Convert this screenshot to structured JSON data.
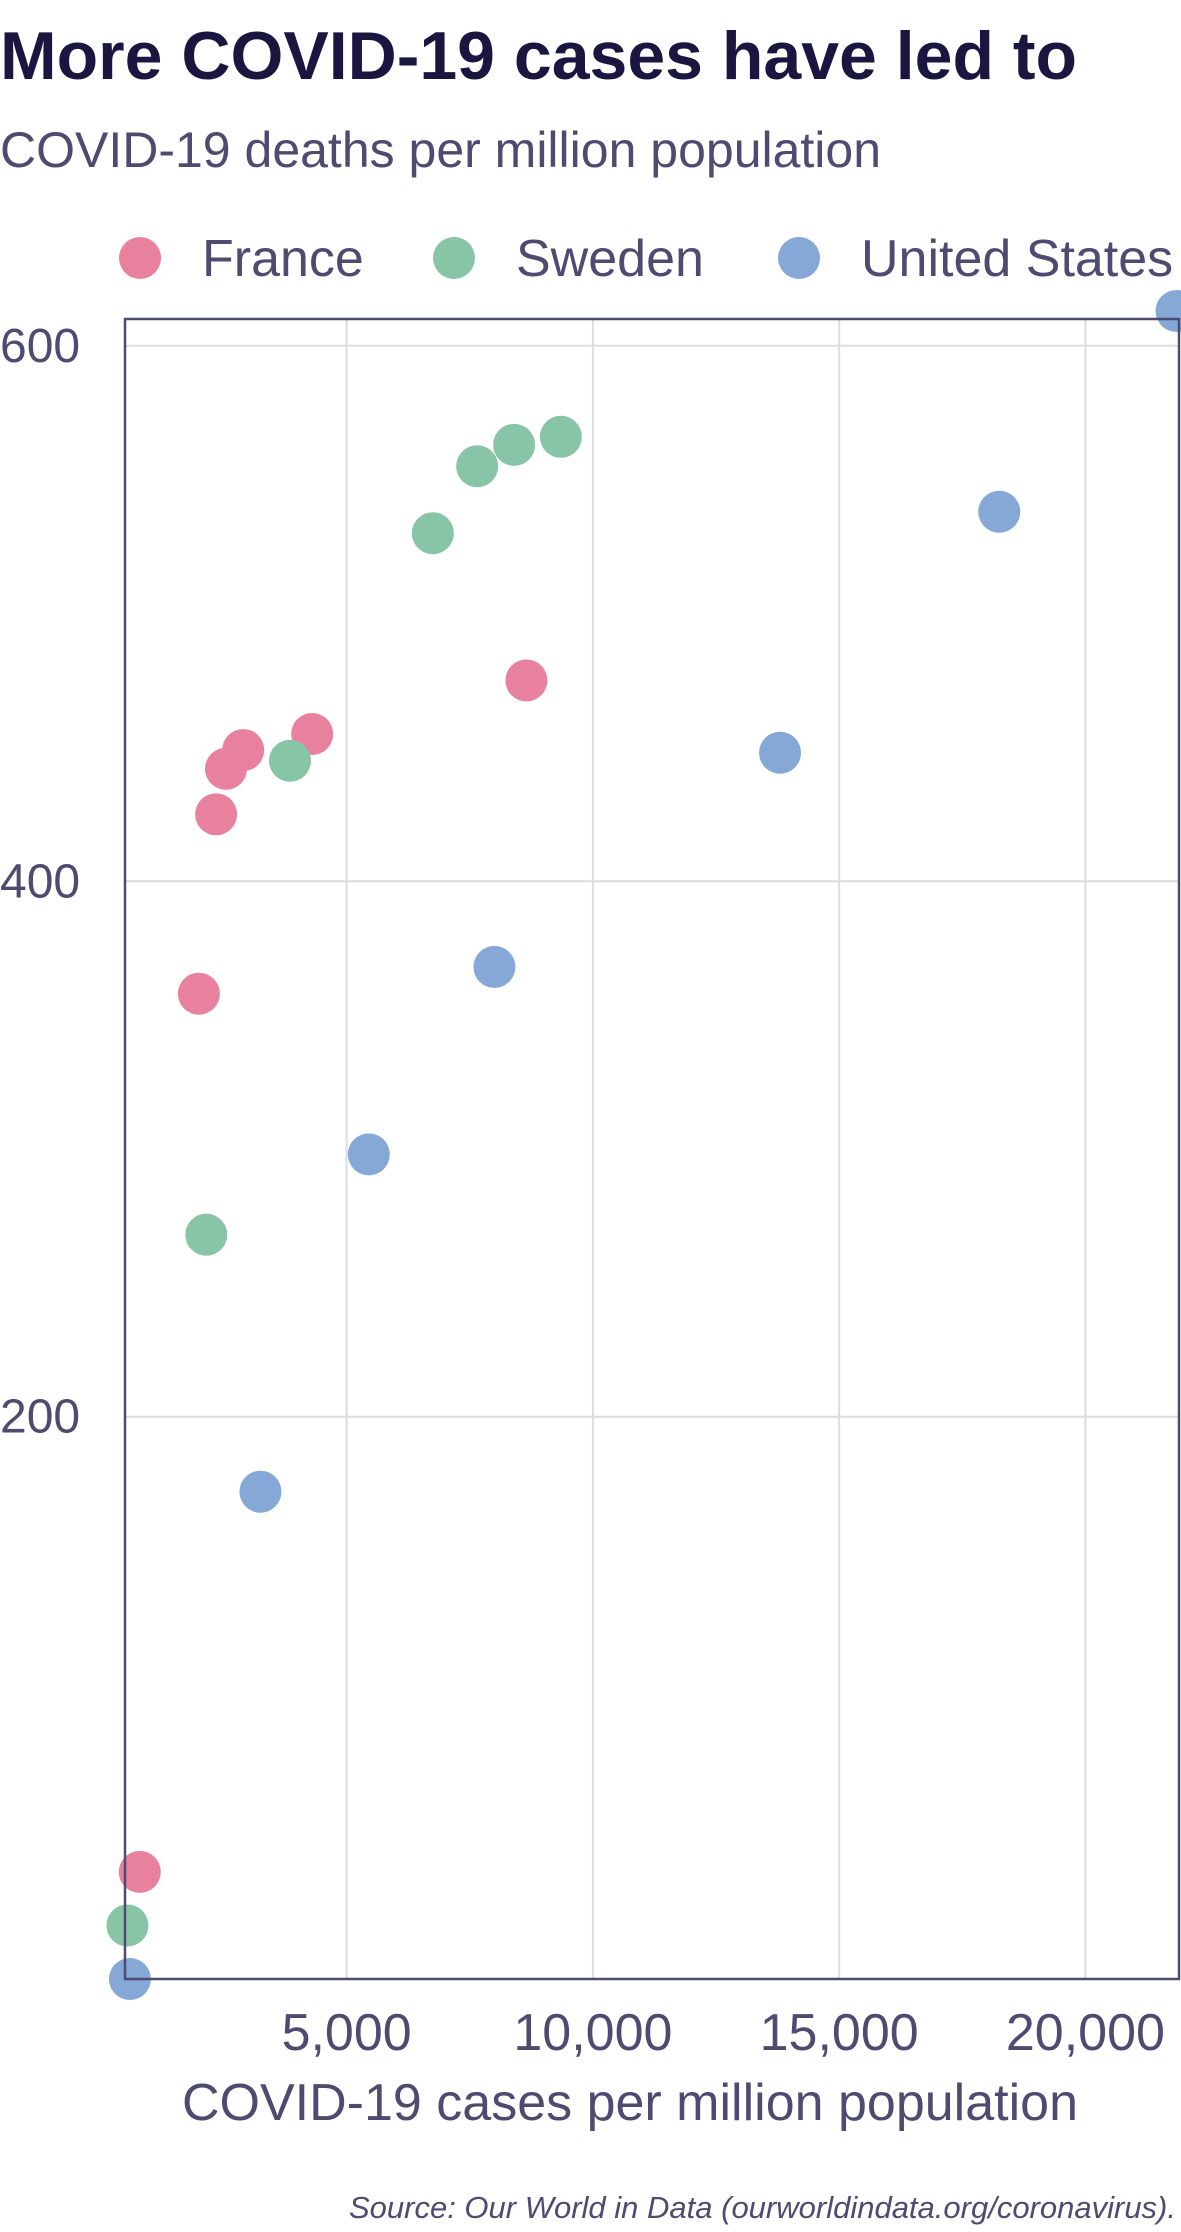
{
  "chart_data": {
    "type": "scatter",
    "title": "More COVID-19 cases have led to",
    "subtitle": "COVID-19 deaths per million population",
    "xlabel": "COVID-19 cases per million population",
    "ylabel": "",
    "xlim": [
      500,
      21900
    ],
    "ylim": [
      -10,
      610
    ],
    "x_ticks": [
      {
        "value": 5000,
        "label": "5,000"
      },
      {
        "value": 10000,
        "label": "10,000"
      },
      {
        "value": 15000,
        "label": "15,000"
      },
      {
        "value": 20000,
        "label": "20,000"
      }
    ],
    "y_ticks": [
      {
        "value": 200,
        "label": "200"
      },
      {
        "value": 400,
        "label": "400"
      },
      {
        "value": 600,
        "label": "600"
      }
    ],
    "grid": true,
    "legend_position": "top",
    "series": [
      {
        "name": "France",
        "color": "#e8819e",
        "points": [
          {
            "x": 800,
            "y": 30
          },
          {
            "x": 2000,
            "y": 358
          },
          {
            "x": 2350,
            "y": 425
          },
          {
            "x": 2550,
            "y": 442
          },
          {
            "x": 2900,
            "y": 449
          },
          {
            "x": 4300,
            "y": 455
          },
          {
            "x": 8650,
            "y": 475
          }
        ]
      },
      {
        "name": "Sweden",
        "color": "#88c4a6",
        "points": [
          {
            "x": 550,
            "y": 10
          },
          {
            "x": 2150,
            "y": 268
          },
          {
            "x": 3850,
            "y": 445
          },
          {
            "x": 6750,
            "y": 530
          },
          {
            "x": 7650,
            "y": 555
          },
          {
            "x": 8400,
            "y": 563
          },
          {
            "x": 9350,
            "y": 566
          }
        ]
      },
      {
        "name": "United States",
        "color": "#86a8d6",
        "points": [
          {
            "x": 600,
            "y": -10
          },
          {
            "x": 3250,
            "y": 172
          },
          {
            "x": 5450,
            "y": 298
          },
          {
            "x": 8000,
            "y": 368
          },
          {
            "x": 13800,
            "y": 448
          },
          {
            "x": 18250,
            "y": 538
          },
          {
            "x": 21850,
            "y": 613
          }
        ]
      }
    ],
    "source": "Source: Our World in Data (ourworldindata.org/coronavirus)."
  }
}
